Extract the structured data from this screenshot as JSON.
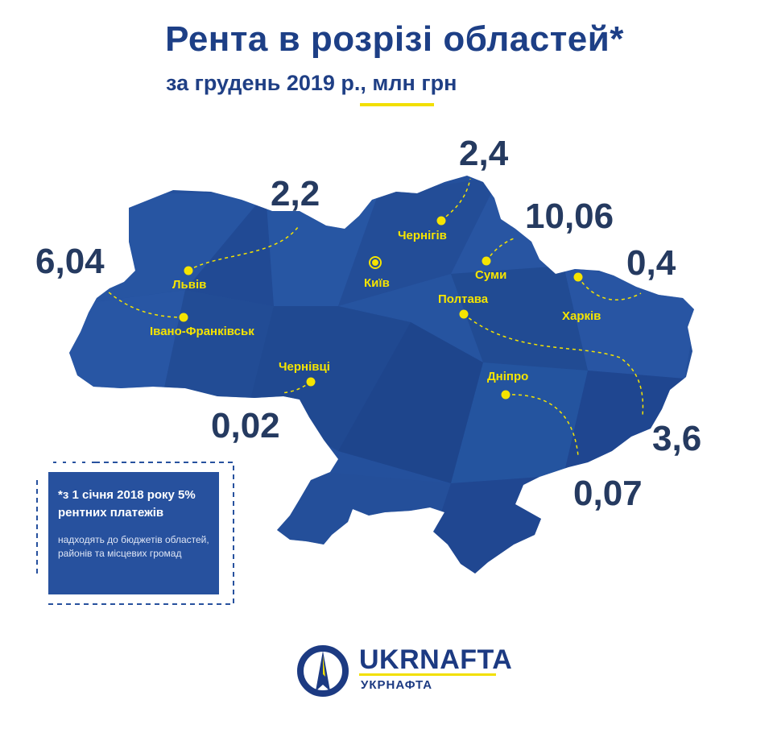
{
  "header": {
    "title": "Рента в розрізі областей*",
    "subtitle": "за грудень 2019 р., млн грн"
  },
  "regions": [
    {
      "city": "Чернігів",
      "value": "2,4"
    },
    {
      "city": "Львів",
      "value": "2,2"
    },
    {
      "city": "Суми",
      "value": "10,06"
    },
    {
      "city": "Івано-Франківськ",
      "value": "6,04"
    },
    {
      "city": "Харків",
      "value": "0,4"
    },
    {
      "city": "Чернівці",
      "value": "0,02"
    },
    {
      "city": "Полтава",
      "value": "3,6"
    },
    {
      "city": "Дніпро",
      "value": "0,07"
    }
  ],
  "capital": {
    "city": "Київ"
  },
  "note": {
    "headline": "*з 1 січня 2018 року 5% рентних платежів",
    "body": "надходять до бюджетів областей, районів та місцевих громад"
  },
  "logo": {
    "latin": "UKRNAFTA",
    "cyrillic": "УКРНАФТА"
  },
  "colors": {
    "map": "#24509c",
    "title": "#1d3f86",
    "accent_yellow": "#f5e400",
    "value_text": "#253a60"
  }
}
